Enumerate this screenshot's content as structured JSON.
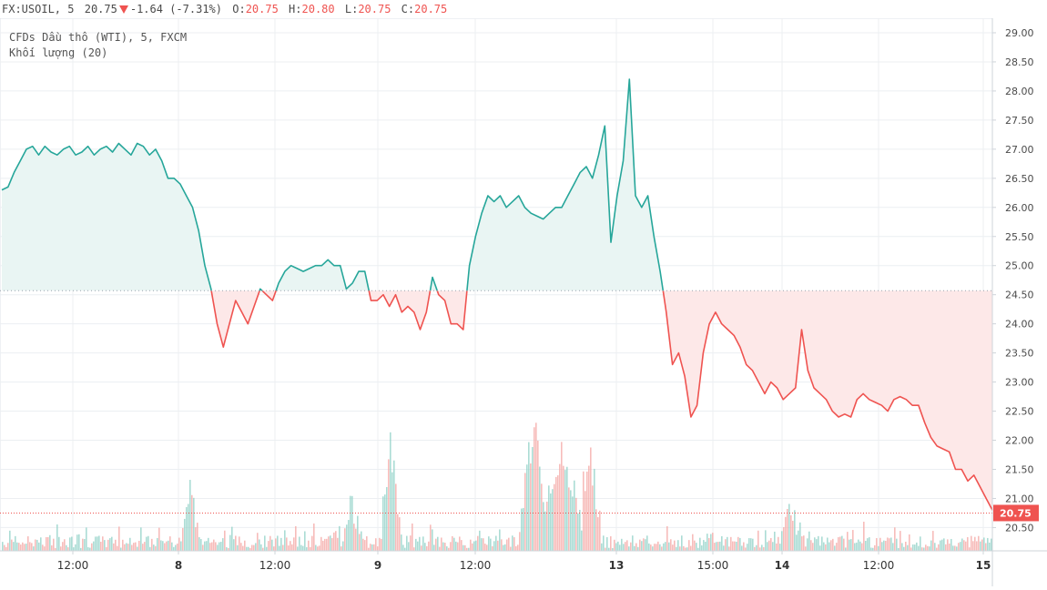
{
  "header": {
    "symbol": "FX:USOIL, 5",
    "last": "20.75",
    "change": "-1.64 (-7.31%)",
    "o_label": "O:",
    "o_value": "20.75",
    "h_label": "H:",
    "h_value": "20.80",
    "l_label": "L:",
    "l_value": "20.75",
    "c_label": "C:",
    "c_value": "20.75"
  },
  "legend": {
    "series_title": "CFDs Dầu thô (WTI), 5, FXCM",
    "volume_title": "Khối lượng (20)"
  },
  "colors": {
    "up": "#26a69a",
    "down": "#ef5350",
    "up_fill": "#e9f5f3",
    "down_fill": "#fde8e8",
    "grid": "#eceff2",
    "axis_text": "#4a4a4a"
  },
  "chart_data": {
    "type": "area",
    "y_axis_ticks": [
      "29.00",
      "28.50",
      "28.00",
      "27.50",
      "27.00",
      "26.50",
      "26.00",
      "25.50",
      "25.00",
      "24.50",
      "24.00",
      "23.50",
      "23.00",
      "22.50",
      "22.00",
      "21.50",
      "21.00",
      "20.50"
    ],
    "ylim": [
      20.1,
      29.25
    ],
    "x_axis_ticks": [
      "12:00",
      "8",
      "12:00",
      "9",
      "12:00",
      "13",
      "15:00",
      "14",
      "12:00",
      "15"
    ],
    "baseline": 24.57,
    "last_price": 20.75,
    "last_price_label": "20.75",
    "series": [
      {
        "values": [
          26.3,
          26.35,
          26.6,
          26.8,
          27.0,
          27.05,
          26.9,
          27.05,
          26.95,
          26.9,
          27.0,
          27.05,
          26.9,
          26.95,
          27.05,
          26.9,
          27.0,
          27.05,
          26.95,
          27.1,
          27.0,
          26.9,
          27.1,
          27.05,
          26.9,
          27.0,
          26.8,
          26.5,
          26.5,
          26.4,
          26.2,
          26.0,
          25.6,
          25.0,
          24.6,
          24.0,
          23.6,
          24.0,
          24.4,
          24.2,
          24.0,
          24.3,
          24.6,
          24.5,
          24.4,
          24.7,
          24.9,
          25.0,
          24.95,
          24.9,
          24.95,
          25.0,
          25.0,
          25.1,
          25.0,
          25.0,
          24.6,
          24.7,
          24.9,
          24.9,
          24.4,
          24.4,
          24.5,
          24.3,
          24.5,
          24.2,
          24.3,
          24.2,
          23.9,
          24.2,
          24.8,
          24.5,
          24.4,
          24.0,
          24.0,
          23.9,
          25.0,
          25.5,
          25.9,
          26.2,
          26.1,
          26.2,
          26.0,
          26.1,
          26.2,
          26.0,
          25.9,
          25.85,
          25.8,
          25.9,
          26.0,
          26.0,
          26.2,
          26.4,
          26.6,
          26.7,
          26.5,
          26.9,
          27.4,
          25.4,
          26.2,
          26.8,
          28.2,
          26.2,
          26.0,
          26.2,
          25.5,
          24.9,
          24.2,
          23.3,
          23.5,
          23.1,
          22.4,
          22.6,
          23.5,
          24.0,
          24.2,
          24.0,
          23.9,
          23.8,
          23.6,
          23.3,
          23.2,
          23.0,
          22.8,
          23.0,
          22.9,
          22.7,
          22.8,
          22.9,
          23.9,
          23.2,
          22.9,
          22.8,
          22.7,
          22.5,
          22.4,
          22.45,
          22.4,
          22.7,
          22.8,
          22.7,
          22.65,
          22.6,
          22.5,
          22.7,
          22.75,
          22.7,
          22.6,
          22.6,
          22.3,
          22.05,
          21.9,
          21.85,
          21.8,
          21.5,
          21.5,
          21.3,
          21.4,
          21.2,
          21.0,
          20.8
        ]
      }
    ]
  }
}
